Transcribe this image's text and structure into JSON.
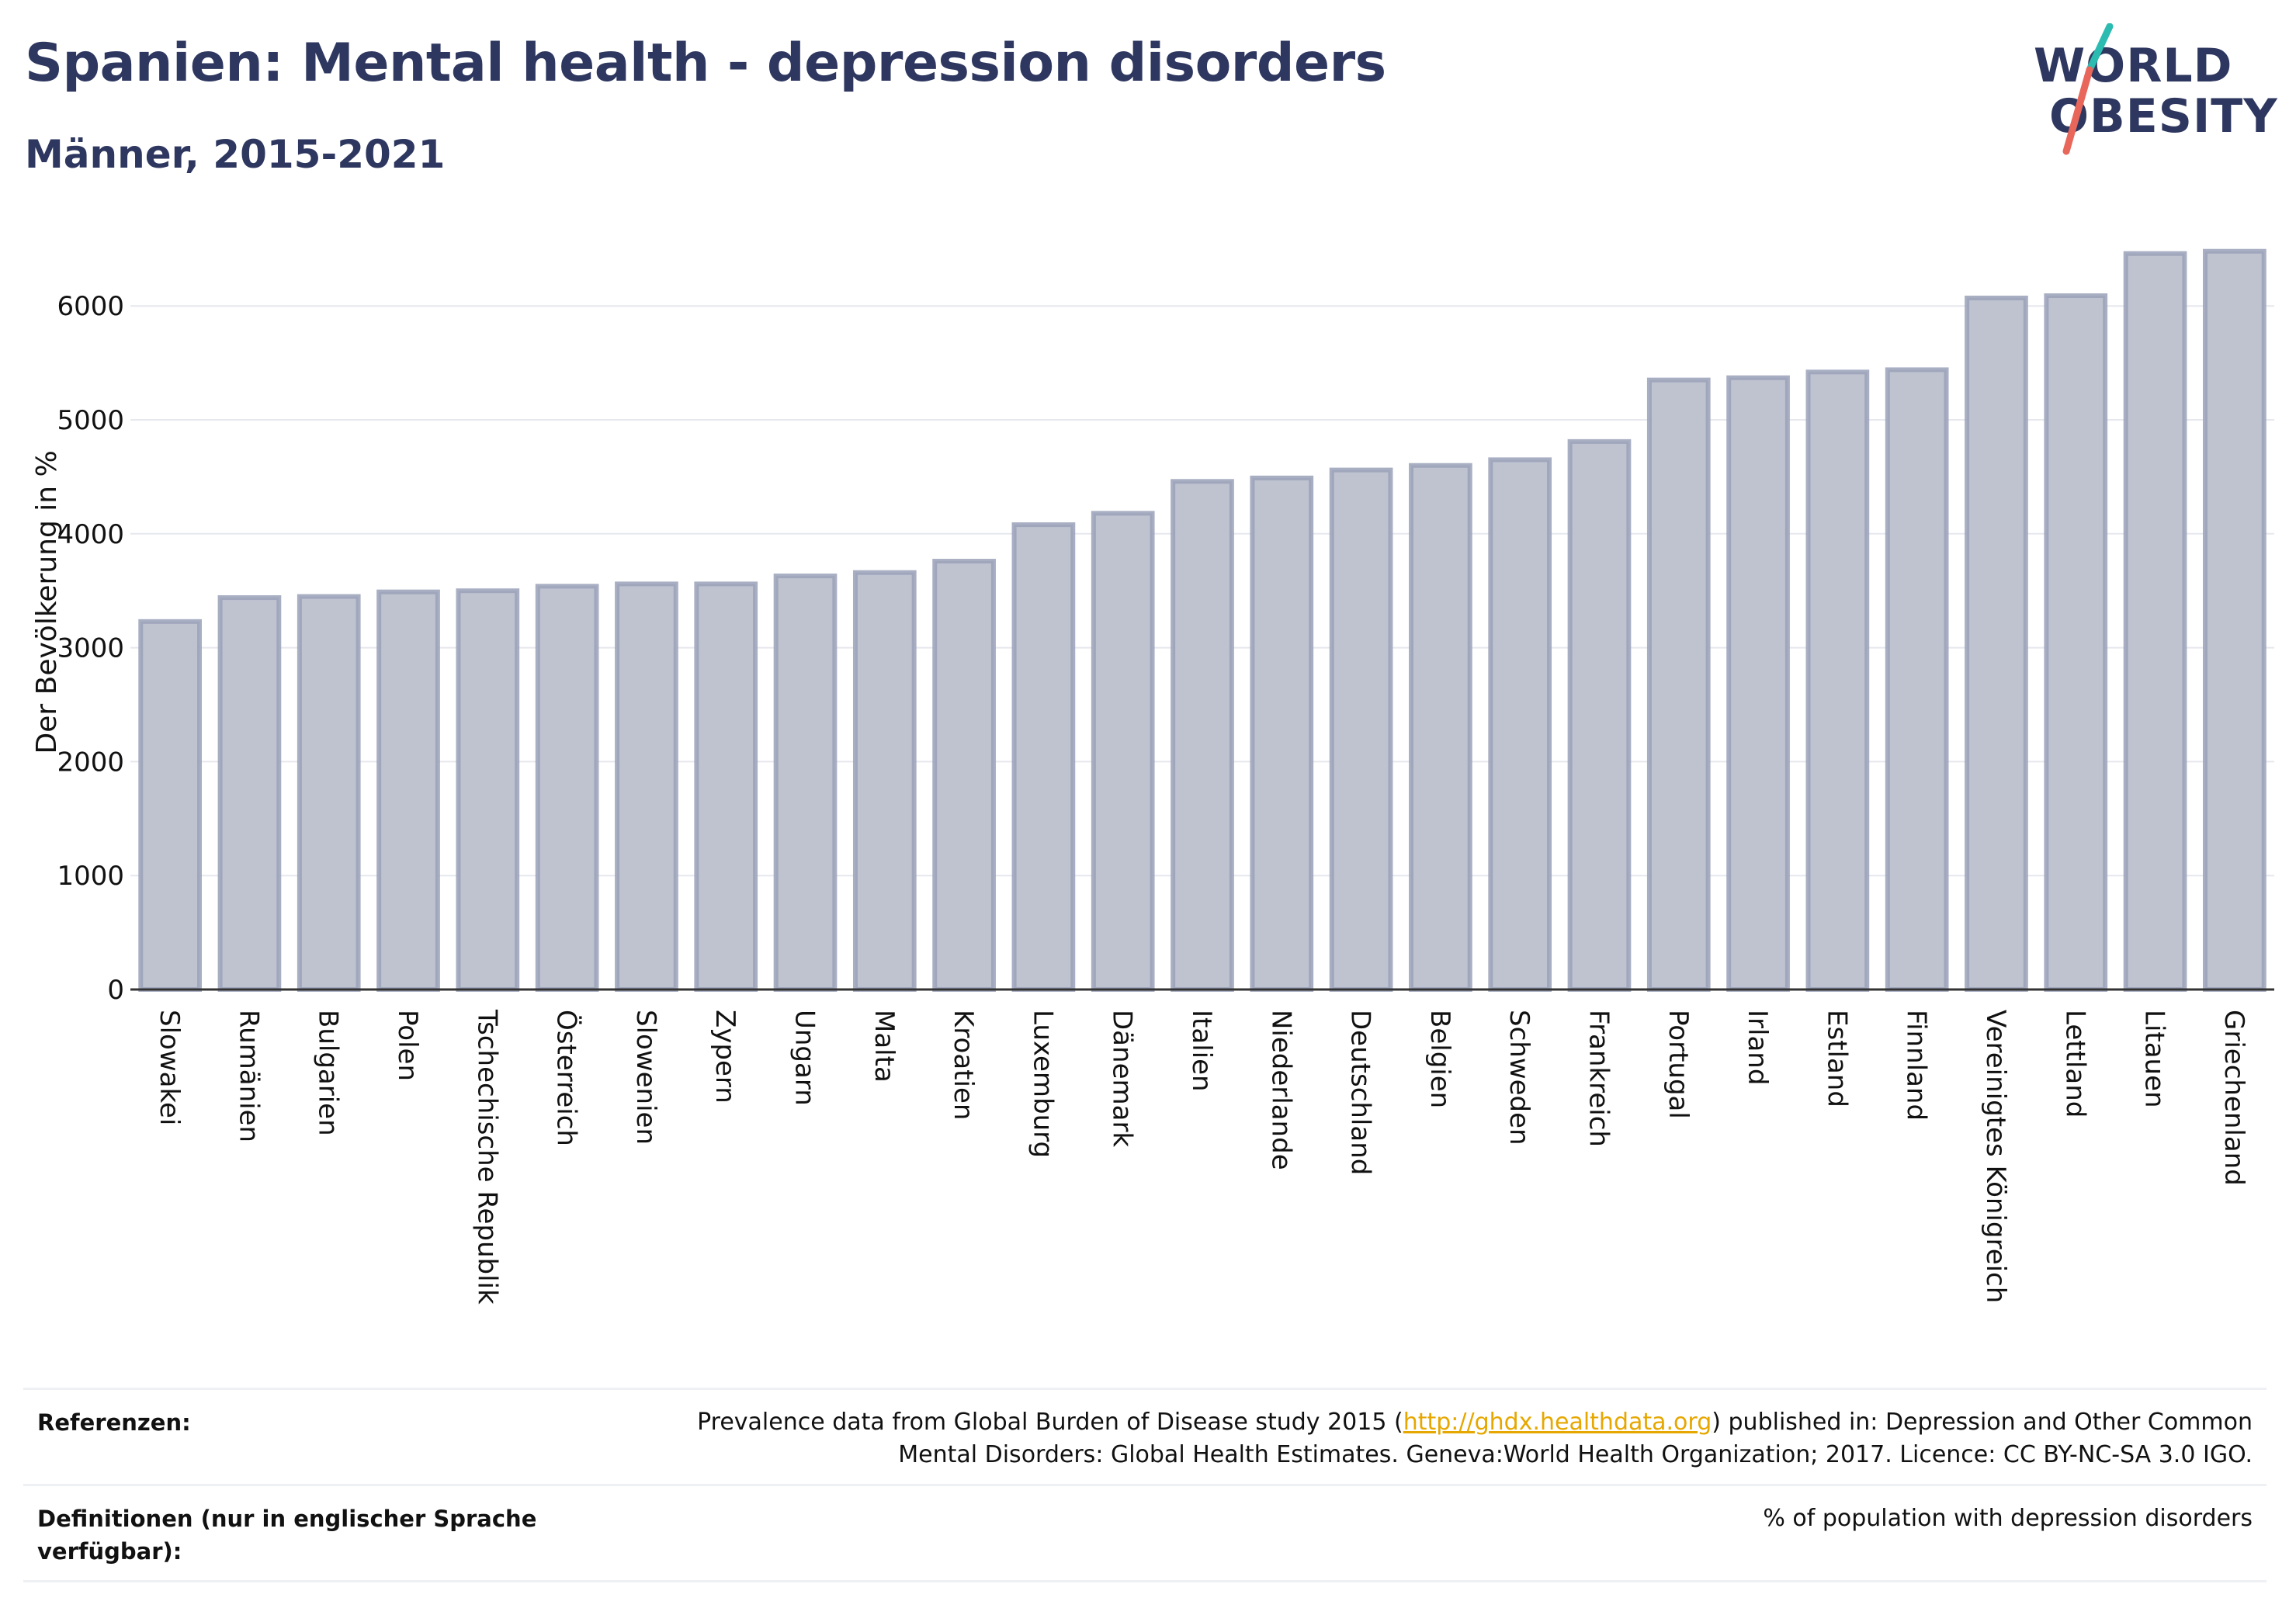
{
  "header": {
    "title": "Spanien: Mental health - depression disorders",
    "subtitle": "Männer, 2015-2021"
  },
  "logo": {
    "line1": "WORLD",
    "line2": "OBESITY",
    "accent_colors": [
      "#2bbbb0",
      "#e8665a"
    ]
  },
  "colors": {
    "bar_fill": "#bfc3d0",
    "bar_stroke": "#9aa1b8",
    "title": "#2e375f",
    "link": "#e6a700"
  },
  "chart_data": {
    "type": "bar",
    "title": "Spanien: Mental health - depression disorders",
    "subtitle": "Männer, 2015-2021",
    "ylabel": "Der Bevölkerung in %",
    "xlabel": "",
    "ylim": [
      0,
      6800
    ],
    "yticks": [
      0,
      1000,
      2000,
      3000,
      4000,
      5000,
      6000
    ],
    "grid": true,
    "categories": [
      "Slowakei",
      "Rumänien",
      "Bulgarien",
      "Polen",
      "Tschechische Republik",
      "Österreich",
      "Slowenien",
      "Zypern",
      "Ungarn",
      "Malta",
      "Kroatien",
      "Luxemburg",
      "Dänemark",
      "Italien",
      "Niederlande",
      "Deutschland",
      "Belgien",
      "Schweden",
      "Frankreich",
      "Portugal",
      "Irland",
      "Estland",
      "Finnland",
      "Vereinigtes Königreich",
      "Lettland",
      "Litauen",
      "Griechenland"
    ],
    "values": [
      3230,
      3440,
      3450,
      3490,
      3500,
      3540,
      3560,
      3560,
      3630,
      3660,
      3760,
      4080,
      4180,
      4460,
      4490,
      4560,
      4600,
      4650,
      4810,
      5350,
      5370,
      5420,
      5440,
      6070,
      6090,
      6460,
      6480
    ]
  },
  "footer": {
    "references_label": "Referenzen:",
    "references_text_before": "Prevalence data from Global Burden of Disease study 2015 (",
    "references_link": "http://ghdx.healthdata.org",
    "references_text_after": ") published in: Depression and Other Common",
    "references_line2": "Mental Disorders: Global Health Estimates. Geneva:World Health Organization; 2017. Licence: CC BY-NC-SA 3.0 IGO.",
    "definitions_label_line1": "Definitionen (nur in englischer Sprache",
    "definitions_label_line2": "verfügbar):",
    "definitions_text": "% of population with depression disorders"
  }
}
